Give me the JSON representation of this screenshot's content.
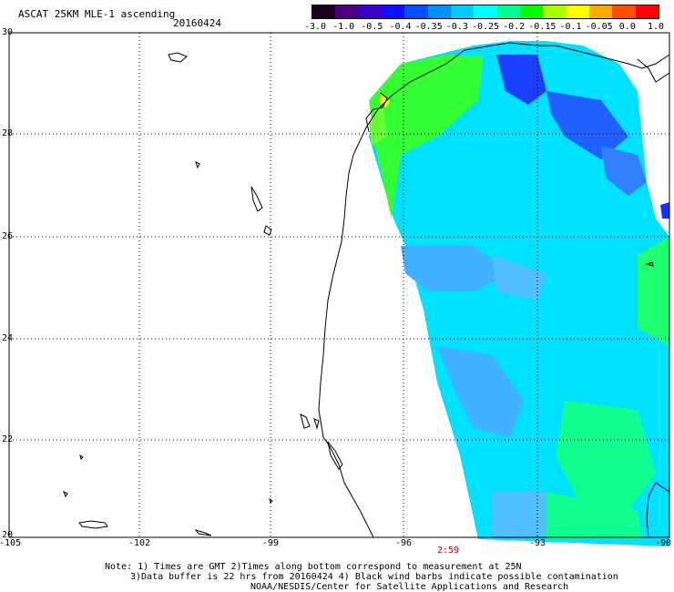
{
  "header": {
    "title": "ASCAT 25KM MLE-1 ascending",
    "date": "20160424"
  },
  "colorbar": {
    "labels": [
      "-3.0",
      "-1.0",
      "-0.5",
      "-0.4",
      "-0.35",
      "-0.3",
      "-0.25",
      "-0.2",
      "-0.15",
      "-0.1",
      "-0.05",
      "0.0",
      "1.0"
    ],
    "colors": [
      "#1a0020",
      "#4b0082",
      "#3a00c8",
      "#1010ff",
      "#0050ff",
      "#0090ff",
      "#00ccff",
      "#00ffff",
      "#00ff90",
      "#00ff00",
      "#aaff00",
      "#ffff00",
      "#ffaa00",
      "#ff5000",
      "#ff0000"
    ]
  },
  "axes": {
    "lat_labels": [
      "30",
      "28",
      "26",
      "24",
      "22",
      "20"
    ],
    "lon_labels": [
      "-105",
      "-102",
      "-99",
      "-96",
      "-93",
      "-90"
    ],
    "time_label": "2:59",
    "time_color": "#cc0000"
  },
  "footer": {
    "line1": "Note: 1) Times are GMT 2)Times along bottom correspond to measurement at 25N",
    "line2": "3)Data buffer is 22 hrs from 20160424 4) Black wind barbs indicate possible contamination",
    "line3": "NOAA/NESDIS/Center for Satellite Applications and Research"
  }
}
